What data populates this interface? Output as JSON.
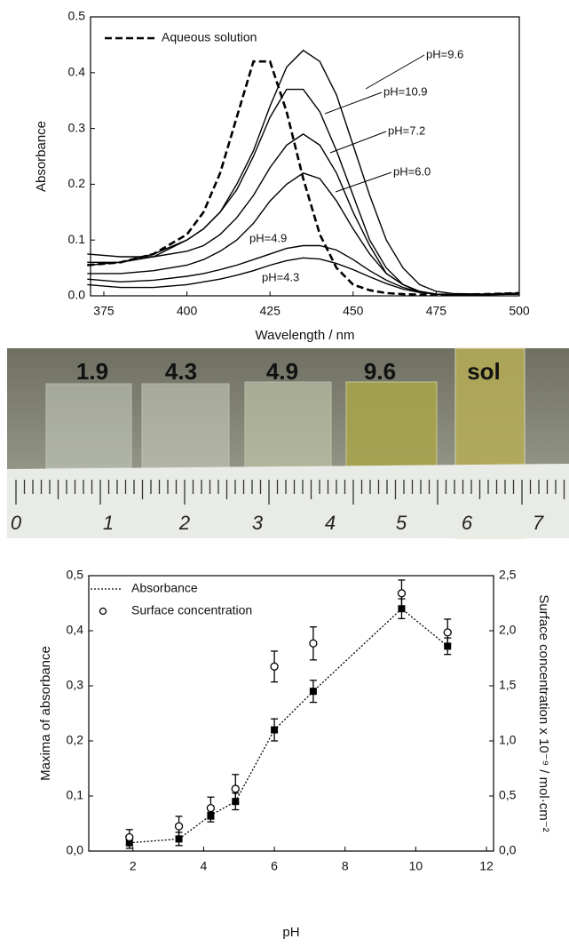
{
  "chart_data": [
    {
      "type": "line",
      "x_label": "Wavelength / nm",
      "y_label": "Absorbance",
      "xlim": [
        371,
        500
      ],
      "ylim": [
        0,
        0.5
      ],
      "xticks": [
        375,
        400,
        425,
        450,
        475,
        500
      ],
      "yticks": [
        {
          "value": 0,
          "label": "0.0"
        },
        0.1,
        0.2,
        0.3,
        0.4,
        0.5
      ],
      "x": [
        370,
        380,
        390,
        400,
        405,
        410,
        415,
        420,
        425,
        430,
        435,
        440,
        445,
        450,
        455,
        460,
        465,
        470,
        475,
        480,
        490,
        500
      ],
      "series": [
        {
          "name": "Aqueous solution",
          "color": "#000000",
          "dashed": true,
          "values": [
            0.055,
            0.06,
            0.075,
            0.11,
            0.15,
            0.22,
            0.32,
            0.42,
            0.42,
            0.33,
            0.21,
            0.11,
            0.05,
            0.02,
            0.01,
            0.005,
            0.003,
            0.002,
            0.002,
            0.002,
            0.003,
            0.005
          ]
        },
        {
          "name": "pH=9.6",
          "color": "#000000",
          "values": [
            0.055,
            0.06,
            0.075,
            0.1,
            0.12,
            0.15,
            0.2,
            0.26,
            0.34,
            0.41,
            0.44,
            0.42,
            0.36,
            0.27,
            0.18,
            0.1,
            0.05,
            0.02,
            0.008,
            0.004,
            0.003,
            0.005
          ]
        },
        {
          "name": "pH=10.9",
          "color": "#000000",
          "values": [
            0.06,
            0.06,
            0.07,
            0.1,
            0.12,
            0.15,
            0.19,
            0.25,
            0.32,
            0.37,
            0.37,
            0.33,
            0.26,
            0.18,
            0.1,
            0.05,
            0.02,
            0.008,
            0.003,
            0.002,
            0.003,
            0.005
          ]
        },
        {
          "name": "pH=7.2",
          "color": "#000000",
          "values": [
            0.075,
            0.07,
            0.07,
            0.08,
            0.09,
            0.11,
            0.14,
            0.18,
            0.23,
            0.27,
            0.29,
            0.27,
            0.22,
            0.15,
            0.09,
            0.04,
            0.02,
            0.007,
            0.003,
            0.002,
            0.002,
            0.004
          ]
        },
        {
          "name": "pH=6.0",
          "color": "#000000",
          "values": [
            0.04,
            0.04,
            0.045,
            0.055,
            0.065,
            0.08,
            0.1,
            0.13,
            0.17,
            0.2,
            0.22,
            0.21,
            0.17,
            0.12,
            0.075,
            0.04,
            0.02,
            0.008,
            0.003,
            0.002,
            0.002,
            0.004
          ]
        },
        {
          "name": "pH=4.9",
          "color": "#000000",
          "values": [
            0.03,
            0.025,
            0.028,
            0.035,
            0.04,
            0.047,
            0.055,
            0.065,
            0.075,
            0.085,
            0.09,
            0.09,
            0.082,
            0.065,
            0.045,
            0.028,
            0.015,
            0.007,
            0.003,
            0.002,
            0.002,
            0.003
          ]
        },
        {
          "name": "pH=4.3",
          "color": "#000000",
          "values": [
            0.02,
            0.015,
            0.015,
            0.02,
            0.025,
            0.03,
            0.037,
            0.045,
            0.055,
            0.063,
            0.068,
            0.066,
            0.058,
            0.047,
            0.034,
            0.022,
            0.012,
            0.006,
            0.003,
            0.002,
            0.002,
            0.003
          ]
        }
      ]
    },
    {
      "type": "scatter",
      "x_label": "pH",
      "y_label": "Maxima of absorbance",
      "y2_label": "Surface concentration x 10⁻⁹ / mol·cm⁻²",
      "xlim": [
        0.75,
        12.2
      ],
      "ylim": [
        0,
        0.5
      ],
      "y2lim": [
        0,
        2.5
      ],
      "xticks": [
        2,
        4,
        6,
        8,
        10,
        12
      ],
      "yticks": [
        {
          "value": 0,
          "label": "0,0"
        },
        {
          "value": 0.1,
          "label": "0,1"
        },
        {
          "value": 0.2,
          "label": "0,2"
        },
        {
          "value": 0.3,
          "label": "0,3"
        },
        {
          "value": 0.4,
          "label": "0,4"
        },
        {
          "value": 0.5,
          "label": "0,5"
        }
      ],
      "y2ticks": [
        {
          "value": 0,
          "label": "0,0"
        },
        {
          "value": 0.5,
          "label": "0,5"
        },
        {
          "value": 1,
          "label": "1,0"
        },
        {
          "value": 1.5,
          "label": "1,5"
        },
        {
          "value": 2,
          "label": "2,0"
        },
        {
          "value": 2.5,
          "label": "2,5"
        }
      ],
      "x": [
        1.9,
        3.3,
        4.2,
        4.9,
        6.0,
        7.1,
        9.6,
        10.9
      ],
      "series": [
        {
          "name": "Absorbance",
          "color": "#000000",
          "marker": "square",
          "dotted": true,
          "values": [
            0.015,
            0.022,
            0.065,
            0.09,
            0.22,
            0.29,
            0.44,
            0.372
          ],
          "errors": [
            0.01,
            0.012,
            0.012,
            0.015,
            0.02,
            0.02,
            0.018,
            0.015
          ]
        },
        {
          "name": "Surface concentration",
          "color": "#000000",
          "marker": "circle",
          "axis": "y2",
          "values": [
            0.125,
            0.225,
            0.39,
            0.565,
            1.675,
            1.885,
            2.34,
            1.985
          ],
          "errors": [
            0.07,
            0.09,
            0.1,
            0.13,
            0.14,
            0.15,
            0.12,
            0.12
          ]
        }
      ]
    }
  ],
  "photo": {
    "labels": [
      "1.9",
      "4.3",
      "4.9",
      "9.6",
      "sol"
    ],
    "ruler_labels": [
      "0",
      "1",
      "2",
      "3",
      "4",
      "5",
      "6",
      "7"
    ]
  }
}
